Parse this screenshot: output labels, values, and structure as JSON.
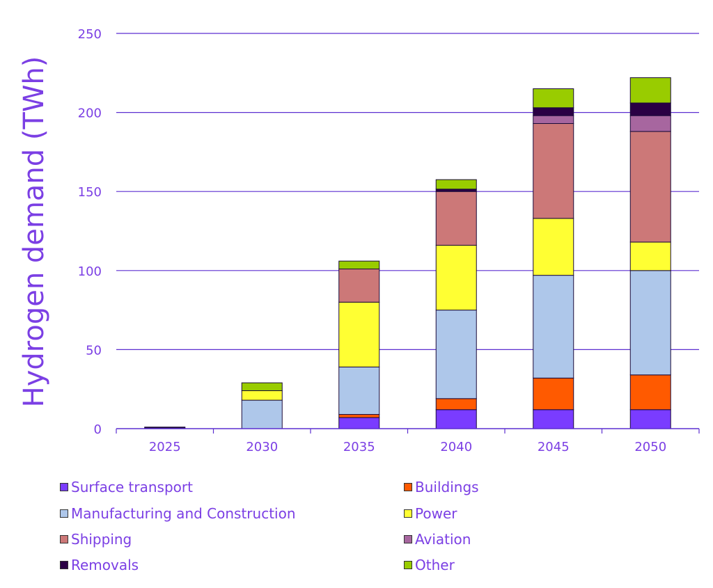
{
  "theme": {
    "accent": "#7b3fe4",
    "gridColor": "#5c2fd0",
    "barStroke": "#1a0a3a"
  },
  "chart_data": {
    "type": "bar",
    "stacked": true,
    "title": "",
    "xlabel": "",
    "ylabel": "Hydrogen demand (TWh)",
    "ylim": [
      0,
      250
    ],
    "yticks": [
      "0",
      "50",
      "100",
      "150",
      "200",
      "250"
    ],
    "yticks_values": [
      0,
      50,
      100,
      150,
      200,
      250
    ],
    "grid": true,
    "legend_position": "bottom",
    "categories": [
      "2025",
      "2030",
      "2035",
      "2040",
      "2045",
      "2050"
    ],
    "series": [
      {
        "name": "Surface transport",
        "color": "#7a3cff",
        "values": [
          0.5,
          0,
          7,
          12,
          12,
          12
        ]
      },
      {
        "name": "Buildings",
        "color": "#ff5a00",
        "values": [
          0,
          0,
          2,
          7,
          20,
          22
        ]
      },
      {
        "name": "Manufacturing and Construction",
        "color": "#aec7ea",
        "values": [
          0,
          18,
          30,
          56,
          65,
          66
        ]
      },
      {
        "name": "Power",
        "color": "#ffff33",
        "values": [
          0,
          6,
          41,
          41,
          36,
          18
        ]
      },
      {
        "name": "Shipping",
        "color": "#cc7878",
        "values": [
          0,
          0,
          21,
          34,
          60,
          70
        ]
      },
      {
        "name": "Aviation",
        "color": "#a7669f",
        "values": [
          0,
          0,
          0,
          0,
          5,
          10
        ]
      },
      {
        "name": "Removals",
        "color": "#2a0044",
        "values": [
          0.5,
          0,
          0,
          1.5,
          5,
          8
        ]
      },
      {
        "name": "Other",
        "color": "#99cc00",
        "values": [
          0,
          5,
          5,
          6,
          12,
          16
        ]
      }
    ]
  }
}
